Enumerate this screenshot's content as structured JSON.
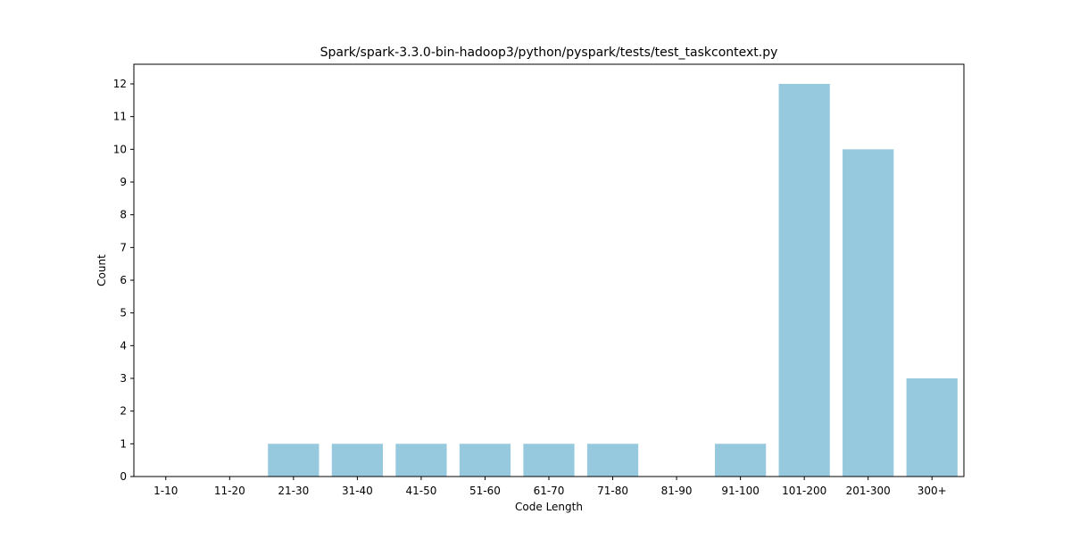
{
  "chart_data": {
    "type": "bar",
    "title": "Spark/spark-3.3.0-bin-hadoop3/python/pyspark/tests/test_taskcontext.py",
    "xlabel": "Code Length",
    "ylabel": "Count",
    "categories": [
      "1-10",
      "11-20",
      "21-30",
      "31-40",
      "41-50",
      "51-60",
      "61-70",
      "71-80",
      "81-90",
      "91-100",
      "101-200",
      "201-300",
      "300+"
    ],
    "values": [
      0,
      0,
      1,
      1,
      1,
      1,
      1,
      1,
      0,
      1,
      12,
      10,
      3
    ],
    "ylim": [
      0,
      12.6
    ],
    "yticks": [
      0,
      1,
      2,
      3,
      4,
      5,
      6,
      7,
      8,
      9,
      10,
      11,
      12
    ],
    "grid": false,
    "legend": "none",
    "bar_color": "#96c9de"
  }
}
